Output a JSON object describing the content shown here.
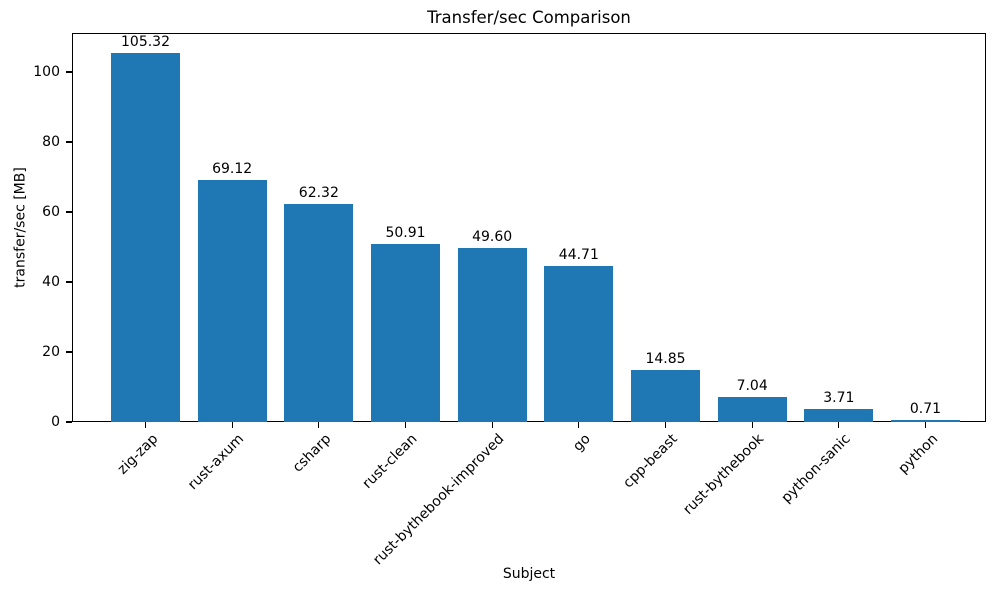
{
  "chart_data": {
    "type": "bar",
    "title": "Transfer/sec Comparison",
    "xlabel": "Subject",
    "ylabel": "transfer/sec [MB]",
    "categories": [
      "zig-zap",
      "rust-axum",
      "csharp",
      "rust-clean",
      "rust-bythebook-improved",
      "go",
      "cpp-beast",
      "rust-bythebook",
      "python-sanic",
      "python"
    ],
    "values": [
      105.32,
      69.12,
      62.32,
      50.91,
      49.6,
      44.71,
      14.85,
      7.04,
      3.71,
      0.71
    ],
    "value_labels": [
      "105.32",
      "69.12",
      "62.32",
      "50.91",
      "49.60",
      "44.71",
      "14.85",
      "7.04",
      "3.71",
      "0.71"
    ],
    "ylim": [
      0,
      111.14
    ],
    "yticks": [
      0,
      20,
      40,
      60,
      80,
      100
    ],
    "bar_color": "#1f77b4",
    "grid": false,
    "legend_position": "none"
  }
}
